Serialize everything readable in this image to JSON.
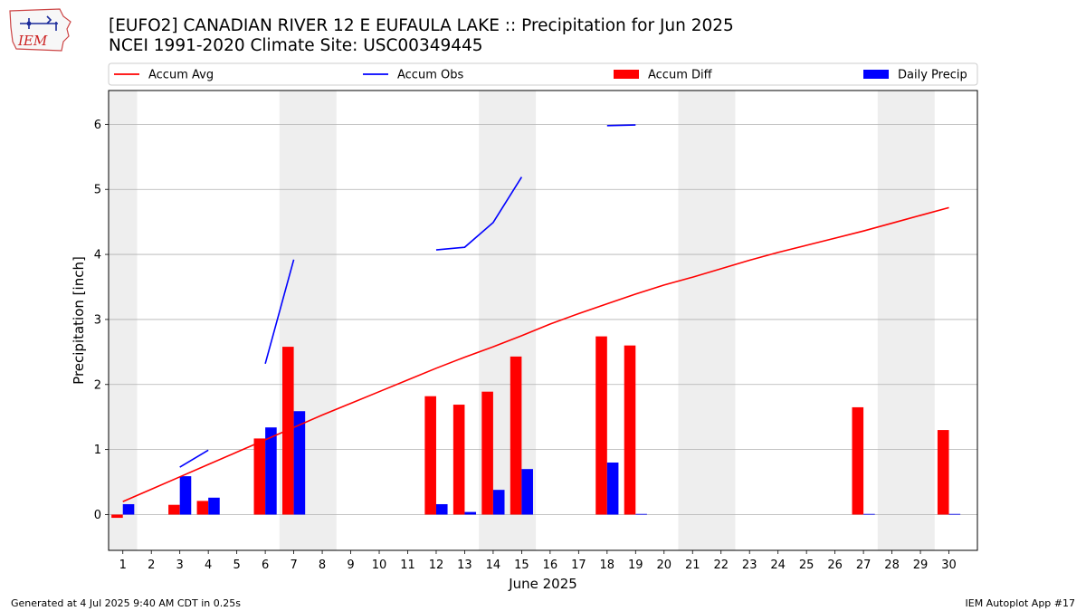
{
  "header": {
    "title_line1": "[EUFO2] CANADIAN RIVER 12 E EUFAULA LAKE :: Precipitation for Jun 2025",
    "title_line2": "NCEI 1991-2020 Climate Site: USC00349445"
  },
  "logo": {
    "text": "IEM"
  },
  "footer": {
    "left": "Generated at 4 Jul 2025 9:40 AM CDT in 0.25s",
    "right": "IEM Autoplot App #17"
  },
  "chart_data": {
    "type": "bar",
    "xlabel": "June 2025",
    "ylabel": "Precipitation [inch]",
    "xlim": [
      0.5,
      31.0
    ],
    "ylim": [
      -0.55,
      6.52
    ],
    "x_ticks": [
      1,
      2,
      3,
      4,
      5,
      6,
      7,
      8,
      9,
      10,
      11,
      12,
      13,
      14,
      15,
      16,
      17,
      18,
      19,
      20,
      21,
      22,
      23,
      24,
      25,
      26,
      27,
      28,
      29,
      30
    ],
    "y_ticks": [
      0,
      1,
      2,
      3,
      4,
      5,
      6
    ],
    "grid": true,
    "legend_position": "top",
    "weekend_shading": [
      [
        0.5,
        1.5
      ],
      [
        6.5,
        8.5
      ],
      [
        13.5,
        15.5
      ],
      [
        20.5,
        22.5
      ],
      [
        27.5,
        29.5
      ]
    ],
    "colors": {
      "avg": "#ff0000",
      "obs": "#0000ff",
      "diff": "#ff0000",
      "daily": "#0000ff",
      "shade": "#eeeeee",
      "grid": "#b0b0b0"
    },
    "series": [
      {
        "name": "Accum Avg",
        "type": "line",
        "x": [
          1,
          2,
          3,
          4,
          5,
          6,
          7,
          8,
          9,
          10,
          11,
          12,
          13,
          14,
          15,
          16,
          17,
          18,
          19,
          20,
          21,
          22,
          23,
          24,
          25,
          26,
          27,
          28,
          29,
          30
        ],
        "values": [
          0.2,
          0.39,
          0.58,
          0.77,
          0.96,
          1.15,
          1.34,
          1.53,
          1.71,
          1.89,
          2.07,
          2.25,
          2.42,
          2.58,
          2.75,
          2.93,
          3.09,
          3.24,
          3.39,
          3.53,
          3.65,
          3.78,
          3.91,
          4.03,
          4.14,
          4.25,
          4.36,
          4.48,
          4.6,
          4.72
        ]
      },
      {
        "name": "Accum Obs",
        "type": "line",
        "segments": [
          {
            "x": [
              3,
              4
            ],
            "values": [
              0.73,
              0.99
            ]
          },
          {
            "x": [
              6,
              7
            ],
            "values": [
              2.32,
              3.92
            ]
          },
          {
            "x": [
              12,
              13,
              14,
              15
            ],
            "values": [
              4.07,
              4.11,
              4.49,
              5.19
            ]
          },
          {
            "x": [
              18,
              19
            ],
            "values": [
              5.98,
              5.99
            ]
          }
        ]
      },
      {
        "name": "Accum Diff",
        "type": "bar",
        "x": [
          1,
          3,
          4,
          6,
          7,
          12,
          13,
          14,
          15,
          18,
          19,
          27,
          30
        ],
        "values": [
          -0.05,
          0.15,
          0.21,
          1.17,
          2.58,
          1.82,
          1.69,
          1.89,
          2.43,
          2.74,
          2.6,
          1.65,
          1.3
        ]
      },
      {
        "name": "Daily Precip",
        "type": "bar",
        "x": [
          1,
          3,
          4,
          6,
          7,
          12,
          13,
          14,
          15,
          18,
          19,
          27,
          30
        ],
        "values": [
          0.16,
          0.59,
          0.26,
          1.34,
          1.59,
          0.16,
          0.04,
          0.38,
          0.7,
          0.8,
          0.01,
          0.01,
          0.01
        ]
      }
    ]
  }
}
